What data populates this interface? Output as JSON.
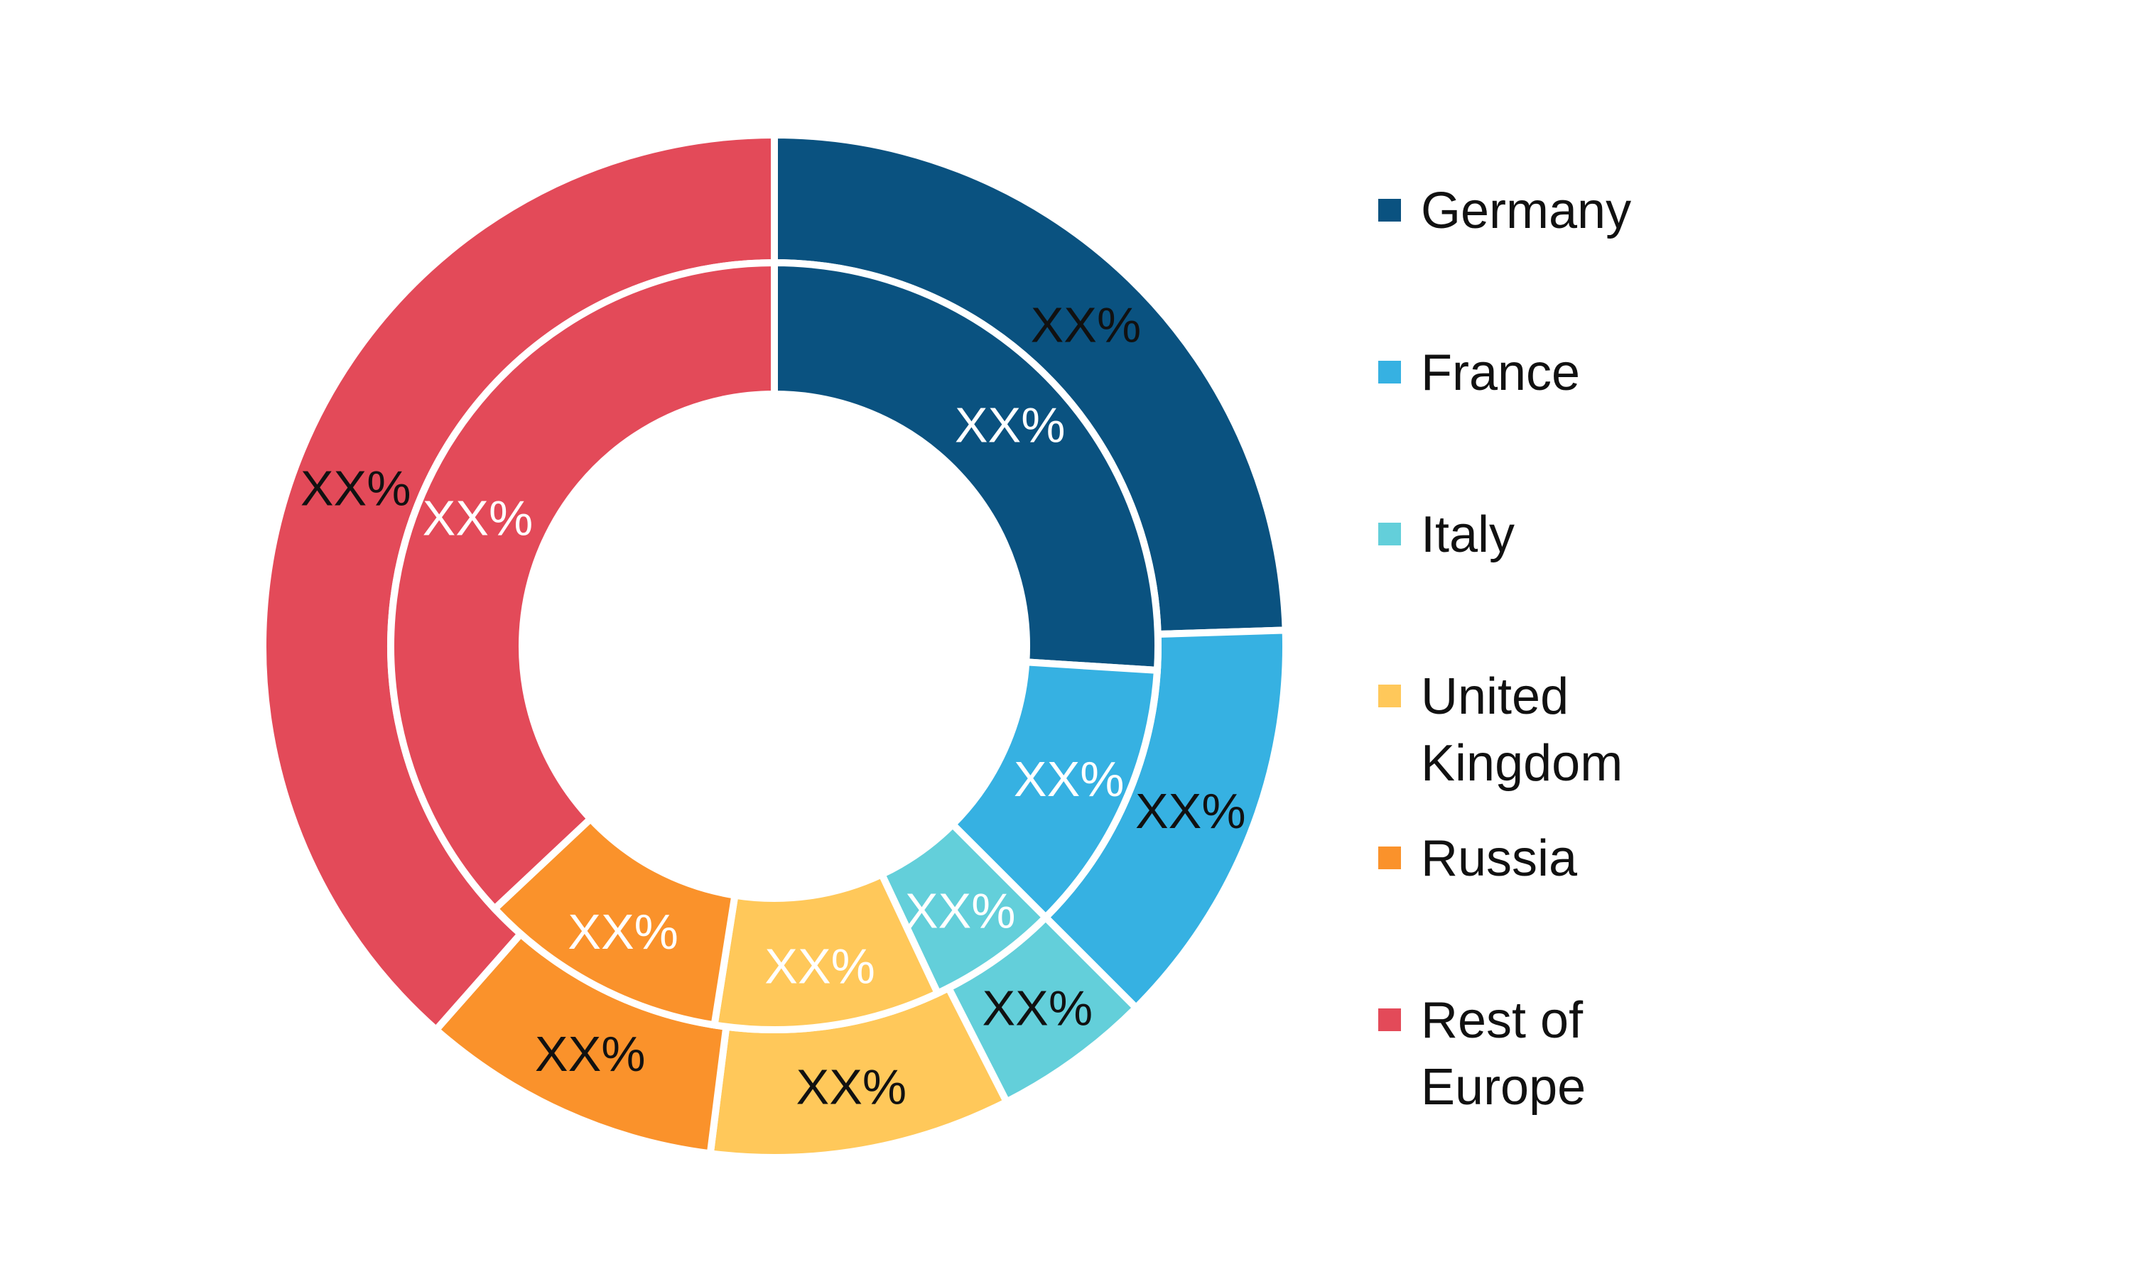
{
  "chart_data": {
    "type": "pie",
    "title": "",
    "legend_position": "right",
    "categories": [
      "Germany",
      "France",
      "Italy",
      "United Kingdom",
      "Russia",
      "Rest of Europe"
    ],
    "colors": [
      "#0a5280",
      "#36b1e2",
      "#63cfda",
      "#ffc85a",
      "#fa922b",
      "#e34a59"
    ],
    "series": [
      {
        "ring": "outer",
        "values": [
          24.5,
          13.0,
          5.0,
          9.5,
          9.5,
          38.5
        ],
        "labels": [
          "XX%",
          "XX%",
          "XX%",
          "XX%",
          "XX%",
          "XX%"
        ]
      },
      {
        "ring": "inner",
        "values": [
          26.0,
          11.5,
          5.5,
          9.5,
          10.5,
          37.0
        ],
        "labels": [
          "XX%",
          "XX%",
          "XX%",
          "XX%",
          "XX%",
          "XX%"
        ]
      }
    ]
  }
}
